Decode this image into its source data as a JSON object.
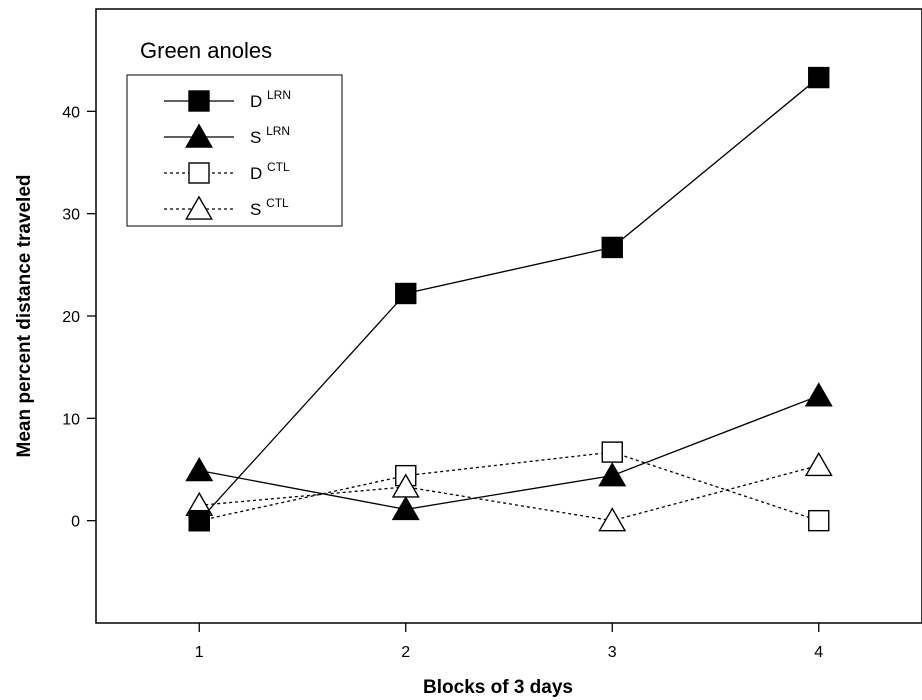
{
  "chart_data": {
    "type": "line",
    "title": "Green anoles",
    "xlabel": "Blocks of 3 days",
    "ylabel": "Mean percent distance traveled",
    "x": [
      1,
      2,
      3,
      4
    ],
    "xlim": [
      0.5,
      4.5
    ],
    "ylim": [
      -10,
      50
    ],
    "yticks": [
      0,
      10,
      20,
      30,
      40
    ],
    "xticks": [
      1,
      2,
      3,
      4
    ],
    "grid": false,
    "legend_position": "top-left",
    "series": [
      {
        "name": "D",
        "sup": "LRN",
        "marker": "square",
        "filled": true,
        "dash": "solid",
        "values": [
          0.0,
          22.2,
          26.7,
          43.3
        ]
      },
      {
        "name": "S",
        "sup": "LRN",
        "marker": "triangle",
        "filled": true,
        "dash": "solid",
        "values": [
          4.9,
          1.1,
          4.4,
          12.2
        ]
      },
      {
        "name": "D",
        "sup": "CTL",
        "marker": "square",
        "filled": false,
        "dash": "dotted",
        "values": [
          0.0,
          4.4,
          6.7,
          0.0
        ]
      },
      {
        "name": "S",
        "sup": "CTL",
        "marker": "triangle",
        "filled": false,
        "dash": "dotted",
        "values": [
          1.5,
          3.3,
          0.0,
          5.4
        ]
      }
    ],
    "colors": {
      "line": "#000000",
      "marker_fill": "#000000",
      "open_fill": "#ffffff"
    }
  }
}
